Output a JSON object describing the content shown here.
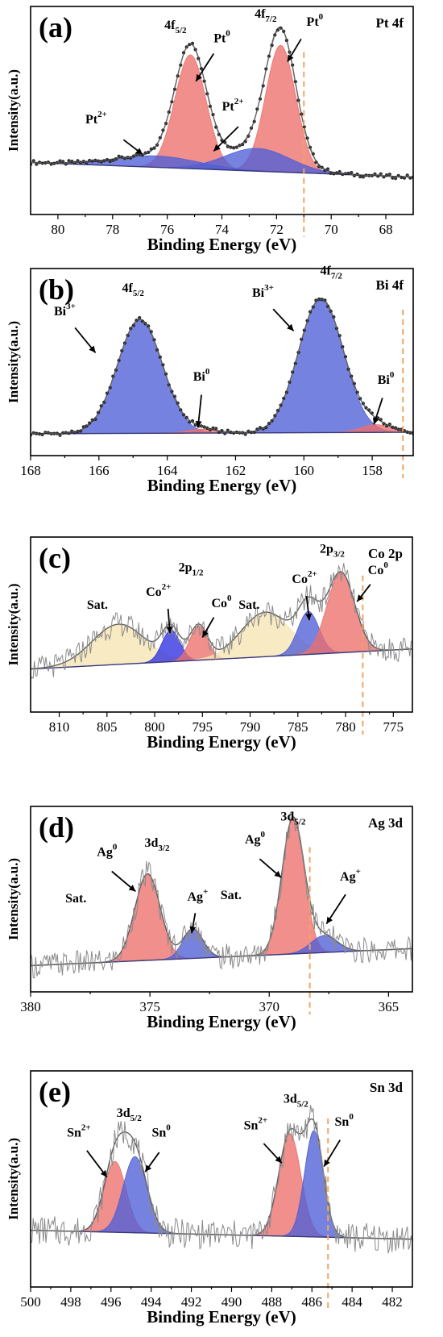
{
  "chart_data": [
    {
      "type": "line",
      "panel_label": "(a)",
      "element": "Pt 4f",
      "xlabel": "Binding Energy (eV)",
      "ylabel": "Intensity(a.u.)",
      "xlim": [
        81,
        67
      ],
      "xticks": [
        80,
        78,
        76,
        74,
        72,
        70,
        68
      ],
      "reference_line_x": 71.0,
      "raw_style": "dots",
      "baseline": [
        0.16,
        0.07
      ],
      "series": [
        {
          "color": "#ec6f6c",
          "center": 75.15,
          "fwhm": 1.35,
          "height": 0.7
        },
        {
          "color": "#ec6f6c",
          "center": 71.85,
          "fwhm": 1.3,
          "height": 0.78
        },
        {
          "color": "#4f5fd6",
          "center": 76.4,
          "fwhm": 3.6,
          "height": 0.07
        },
        {
          "color": "#4f5fd6",
          "center": 72.7,
          "fwhm": 2.8,
          "height": 0.14
        }
      ],
      "annotations": [
        {
          "base": "4f",
          "sub": "5/2",
          "sup": "",
          "x": 75.7,
          "y": 0.98
        },
        {
          "base": "Pt",
          "sub": "",
          "sup": "0",
          "x": 74.0,
          "y": 0.9
        },
        {
          "base": "4f",
          "sub": "7/2",
          "sup": "",
          "x": 72.4,
          "y": 1.05
        },
        {
          "base": "Pt",
          "sub": "",
          "sup": "0",
          "x": 70.6,
          "y": 1.0
        },
        {
          "base": "Pt",
          "sub": "",
          "sup": "2+",
          "x": 78.6,
          "y": 0.4
        },
        {
          "base": "Pt",
          "sub": "",
          "sup": "2+",
          "x": 73.6,
          "y": 0.48
        }
      ],
      "arrows": [
        {
          "x1": 74.3,
          "y1": 0.83,
          "x2": 74.95,
          "y2": 0.66
        },
        {
          "x1": 71.1,
          "y1": 0.92,
          "x2": 71.6,
          "y2": 0.78
        },
        {
          "x1": 77.6,
          "y1": 0.3,
          "x2": 76.9,
          "y2": 0.21
        },
        {
          "x1": 73.4,
          "y1": 0.38,
          "x2": 74.3,
          "y2": 0.23
        }
      ]
    },
    {
      "type": "line",
      "panel_label": "(b)",
      "element": "Bi 4f",
      "xlabel": "Binding Energy (eV)",
      "ylabel": "Intensity(a.u.)",
      "xlim": [
        168,
        156.8
      ],
      "xticks": [
        168,
        166,
        164,
        162,
        160,
        158
      ],
      "reference_line_x": 157.1,
      "raw_style": "dots",
      "baseline": [
        0.06,
        0.07
      ],
      "series": [
        {
          "color": "#4f5fd6",
          "center": 164.8,
          "fwhm": 1.55,
          "height": 0.73
        },
        {
          "color": "#4f5fd6",
          "center": 159.5,
          "fwhm": 1.55,
          "height": 0.86
        },
        {
          "color": "#ec6f6c",
          "center": 163.0,
          "fwhm": 1.0,
          "height": 0.025
        },
        {
          "color": "#ec6f6c",
          "center": 157.9,
          "fwhm": 1.0,
          "height": 0.05
        }
      ],
      "annotations": [
        {
          "base": "4f",
          "sub": "5/2",
          "sup": "",
          "x": 165.0,
          "y": 0.97
        },
        {
          "base": "4f",
          "sub": "7/2",
          "sup": "",
          "x": 159.2,
          "y": 1.08
        },
        {
          "base": "Bi",
          "sub": "",
          "sup": "3+",
          "x": 167.0,
          "y": 0.82
        },
        {
          "base": "Bi",
          "sub": "",
          "sup": "3+",
          "x": 161.2,
          "y": 0.94
        },
        {
          "base": "Bi",
          "sub": "",
          "sup": "0",
          "x": 163.0,
          "y": 0.4
        },
        {
          "base": "Bi",
          "sub": "",
          "sup": "0",
          "x": 157.6,
          "y": 0.38
        }
      ],
      "arrows": [
        {
          "x1": 166.7,
          "y1": 0.74,
          "x2": 166.1,
          "y2": 0.58
        },
        {
          "x1": 160.9,
          "y1": 0.86,
          "x2": 160.3,
          "y2": 0.72
        },
        {
          "x1": 163.0,
          "y1": 0.31,
          "x2": 163.1,
          "y2": 0.1
        },
        {
          "x1": 157.7,
          "y1": 0.29,
          "x2": 157.95,
          "y2": 0.12
        }
      ]
    },
    {
      "type": "line",
      "panel_label": "(c)",
      "element": "Co 2p",
      "xlabel": "Binding Energy (eV)",
      "ylabel": "Intensity(a.u.)",
      "xlim": [
        813,
        773
      ],
      "xticks": [
        810,
        805,
        800,
        795,
        790,
        785,
        780,
        775
      ],
      "reference_line_x": 778.2,
      "raw_style": "noisy",
      "baseline": [
        0.2,
        0.34
      ],
      "series": [
        {
          "color": "#f6e5b2",
          "center": 803.8,
          "fwhm": 6.5,
          "height": 0.28
        },
        {
          "color": "#2f2fe0",
          "center": 798.3,
          "fwhm": 2.2,
          "height": 0.22
        },
        {
          "color": "#ec6f6c",
          "center": 795.4,
          "fwhm": 2.2,
          "height": 0.24
        },
        {
          "color": "#f6e5b2",
          "center": 788.4,
          "fwhm": 6.0,
          "height": 0.31
        },
        {
          "color": "#4f5fd6",
          "center": 783.9,
          "fwhm": 2.6,
          "height": 0.3
        },
        {
          "color": "#ec6f6c",
          "center": 780.5,
          "fwhm": 3.4,
          "height": 0.56
        }
      ],
      "annotations": [
        {
          "base": "Sat.",
          "sub": "",
          "sup": "",
          "x": 806.0,
          "y": 0.62
        },
        {
          "base": "Co",
          "sub": "",
          "sup": "2+",
          "x": 799.6,
          "y": 0.71
        },
        {
          "base": "2p",
          "sub": "1/2",
          "sup": "",
          "x": 796.2,
          "y": 0.88
        },
        {
          "base": "Co",
          "sub": "",
          "sup": "0",
          "x": 793.0,
          "y": 0.63
        },
        {
          "base": "Sat.",
          "sub": "",
          "sup": "",
          "x": 790.1,
          "y": 0.62
        },
        {
          "base": "Co",
          "sub": "",
          "sup": "2+",
          "x": 784.3,
          "y": 0.8
        },
        {
          "base": "2p",
          "sub": "3/2",
          "sup": "",
          "x": 781.4,
          "y": 1.01
        },
        {
          "base": "Co 2p",
          "sub": "",
          "sup": "",
          "x": 776.2,
          "y": 1.01
        },
        {
          "base": "Co",
          "sub": "",
          "sup": "0",
          "x": 776.6,
          "y": 0.86
        }
      ],
      "arrows": [
        {
          "x1": 798.6,
          "y1": 0.62,
          "x2": 798.4,
          "y2": 0.45
        },
        {
          "x1": 793.8,
          "y1": 0.56,
          "x2": 795.0,
          "y2": 0.42
        },
        {
          "x1": 784.1,
          "y1": 0.71,
          "x2": 783.8,
          "y2": 0.54
        },
        {
          "x1": 777.4,
          "y1": 0.79,
          "x2": 778.8,
          "y2": 0.67
        }
      ]
    },
    {
      "type": "line",
      "panel_label": "(d)",
      "element": "Ag 3d",
      "xlabel": "Binding Energy (eV)",
      "ylabel": "Intensity(a.u.)",
      "xlim": [
        380,
        364
      ],
      "xticks": [
        380,
        375,
        370,
        365
      ],
      "reference_line_x": 368.3,
      "raw_style": "noisy",
      "baseline": [
        0.09,
        0.2
      ],
      "series": [
        {
          "color": "#ec6f6c",
          "center": 375.1,
          "fwhm": 1.25,
          "height": 0.56
        },
        {
          "color": "#4f5fd6",
          "center": 373.2,
          "fwhm": 1.0,
          "height": 0.19
        },
        {
          "color": "#ec6f6c",
          "center": 369.0,
          "fwhm": 1.1,
          "height": 0.88
        },
        {
          "color": "#4f5fd6",
          "center": 367.7,
          "fwhm": 1.3,
          "height": 0.11
        }
      ],
      "annotations": [
        {
          "base": "Sat.",
          "sub": "",
          "sup": "",
          "x": 378.1,
          "y": 0.5
        },
        {
          "base": "Ag",
          "sub": "",
          "sup": "0",
          "x": 376.8,
          "y": 0.8
        },
        {
          "base": "3d",
          "sub": "3/2",
          "sup": "",
          "x": 374.7,
          "y": 0.86
        },
        {
          "base": "Ag",
          "sub": "",
          "sup": "+",
          "x": 373.0,
          "y": 0.51
        },
        {
          "base": "Sat.",
          "sub": "",
          "sup": "",
          "x": 371.6,
          "y": 0.52
        },
        {
          "base": "Ag",
          "sub": "",
          "sup": "0",
          "x": 370.6,
          "y": 0.88
        },
        {
          "base": "3d",
          "sub": "5/2",
          "sup": "",
          "x": 369.0,
          "y": 1.03
        },
        {
          "base": "Ag 3d",
          "sub": "",
          "sup": "",
          "x": 366.1,
          "y": 1.01
        },
        {
          "base": "Ag",
          "sub": "",
          "sup": "+",
          "x": 366.6,
          "y": 0.64
        }
      ],
      "arrows": [
        {
          "x1": 376.6,
          "y1": 0.7,
          "x2": 375.6,
          "y2": 0.57
        },
        {
          "x1": 373.1,
          "y1": 0.43,
          "x2": 373.25,
          "y2": 0.3
        },
        {
          "x1": 370.4,
          "y1": 0.78,
          "x2": 369.5,
          "y2": 0.66
        },
        {
          "x1": 366.8,
          "y1": 0.55,
          "x2": 367.6,
          "y2": 0.36
        }
      ]
    },
    {
      "type": "line",
      "panel_label": "(e)",
      "element": "Sn 3d",
      "xlabel": "Binding Energy (eV)",
      "ylabel": "Intensity(a.u.)",
      "xlim": [
        500,
        481
      ],
      "xticks": [
        500,
        498,
        496,
        494,
        492,
        490,
        488,
        486,
        484,
        482
      ],
      "reference_line_x": 485.2,
      "raw_style": "noisy",
      "baseline": [
        0.22,
        0.17
      ],
      "series": [
        {
          "color": "#ec6f6c",
          "center": 495.8,
          "fwhm": 1.3,
          "height": 0.4
        },
        {
          "color": "#4f5fd6",
          "center": 494.8,
          "fwhm": 1.4,
          "height": 0.43
        },
        {
          "color": "#ec6f6c",
          "center": 487.1,
          "fwhm": 1.3,
          "height": 0.58
        },
        {
          "color": "#4f5fd6",
          "center": 485.9,
          "fwhm": 1.1,
          "height": 0.6
        }
      ],
      "annotations": [
        {
          "base": "3d",
          "sub": "5/2",
          "sup": "",
          "x": 495.1,
          "y": 0.86
        },
        {
          "base": "Sn",
          "sub": "",
          "sup": "2+",
          "x": 497.6,
          "y": 0.75
        },
        {
          "base": "Sn",
          "sub": "",
          "sup": "0",
          "x": 493.5,
          "y": 0.75
        },
        {
          "base": "3d",
          "sub": "5/2",
          "sup": "",
          "x": 486.8,
          "y": 0.94
        },
        {
          "base": "Sn",
          "sub": "",
          "sup": "2+",
          "x": 488.8,
          "y": 0.79
        },
        {
          "base": "Sn",
          "sub": "",
          "sup": "0",
          "x": 484.4,
          "y": 0.81
        },
        {
          "base": "Sn 3d",
          "sub": "",
          "sup": "",
          "x": 482.6,
          "y": 1.01
        }
      ],
      "arrows": [
        {
          "x1": 497.2,
          "y1": 0.67,
          "x2": 496.2,
          "y2": 0.52
        },
        {
          "x1": 493.6,
          "y1": 0.66,
          "x2": 494.3,
          "y2": 0.55
        },
        {
          "x1": 488.4,
          "y1": 0.71,
          "x2": 487.5,
          "y2": 0.6
        },
        {
          "x1": 484.6,
          "y1": 0.73,
          "x2": 485.4,
          "y2": 0.58
        }
      ]
    }
  ]
}
